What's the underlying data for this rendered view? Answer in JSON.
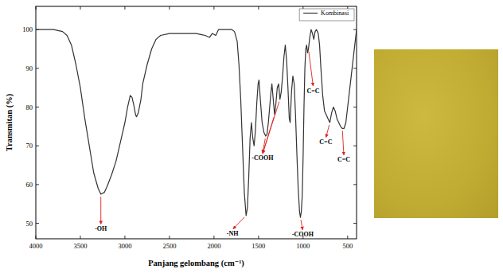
{
  "chart_data": {
    "type": "line",
    "xlabel": "Panjang gelombang (cm⁻¹)",
    "ylabel": "Transmitan (%)",
    "xlim": [
      4000,
      400
    ],
    "ylim": [
      46,
      106
    ],
    "xticks": [
      4000,
      3500,
      3000,
      2500,
      2000,
      1500,
      1000,
      500
    ],
    "yticks": [
      50,
      60,
      70,
      80,
      90,
      100
    ],
    "grid": false,
    "legend": "upper right",
    "x": [
      4000,
      3900,
      3800,
      3700,
      3650,
      3600,
      3550,
      3500,
      3450,
      3400,
      3350,
      3300,
      3270,
      3230,
      3200,
      3150,
      3100,
      3050,
      3000,
      2970,
      2940,
      2920,
      2900,
      2880,
      2870,
      2850,
      2820,
      2800,
      2750,
      2700,
      2650,
      2600,
      2500,
      2400,
      2300,
      2200,
      2100,
      2050,
      2020,
      1980,
      1950,
      1900,
      1800,
      1770,
      1740,
      1720,
      1700,
      1680,
      1660,
      1640,
      1625,
      1610,
      1595,
      1580,
      1565,
      1550,
      1535,
      1520,
      1505,
      1495,
      1480,
      1460,
      1440,
      1420,
      1405,
      1390,
      1375,
      1360,
      1350,
      1335,
      1320,
      1305,
      1290,
      1275,
      1260,
      1245,
      1230,
      1215,
      1200,
      1185,
      1170,
      1155,
      1145,
      1130,
      1115,
      1100,
      1085,
      1070,
      1055,
      1040,
      1030,
      1020,
      1010,
      1000,
      990,
      980,
      970,
      960,
      950,
      940,
      925,
      910,
      895,
      880,
      865,
      850,
      830,
      815,
      800,
      780,
      760,
      740,
      720,
      700,
      680,
      660,
      640,
      620,
      600,
      580,
      560,
      540,
      520,
      500,
      480,
      460,
      440,
      420,
      400
    ],
    "series": [
      {
        "name": "Kombinasi",
        "color": "#333333",
        "values": [
          100,
          100,
          100,
          99.5,
          98.5,
          96,
          91,
          85,
          77,
          70,
          63,
          59,
          57.5,
          58,
          59.5,
          62.5,
          66,
          71,
          76,
          80,
          83,
          82.5,
          80.5,
          78,
          77.5,
          78.5,
          82,
          86,
          91,
          95,
          97.5,
          98.5,
          99,
          99,
          99,
          99,
          98.5,
          98,
          99,
          98.5,
          100,
          100,
          100,
          99.5,
          97,
          91,
          82,
          70,
          58,
          52,
          54,
          62,
          72,
          76,
          72,
          70,
          74,
          81,
          86,
          87,
          82,
          76,
          73.5,
          72.5,
          73,
          76,
          80,
          84,
          86,
          82,
          78,
          81,
          85,
          86,
          82,
          84,
          88,
          93,
          96,
          92,
          85,
          77,
          76,
          84,
          88,
          86,
          78,
          68,
          59,
          53,
          51.5,
          53,
          57,
          67,
          80,
          90,
          95,
          96,
          94,
          95,
          98,
          100,
          99,
          97.5,
          99.5,
          100,
          99,
          96,
          90,
          83,
          79,
          78,
          77,
          76,
          78.5,
          80,
          79,
          77,
          76,
          75,
          74.5,
          74.5,
          76,
          80,
          84,
          88,
          92,
          96,
          100
        ]
      }
    ],
    "annotations": [
      {
        "text": "-OH",
        "x": [
          3270
        ],
        "y": [
          57.5
        ]
      },
      {
        "text": "-NH",
        "x": [
          1640
        ],
        "y": [
          52
        ]
      },
      {
        "text": "-COOH",
        "x": [
          1420,
          1320,
          1260
        ],
        "y": [
          72.5,
          78,
          82
        ]
      },
      {
        "text": "-COOH",
        "x": [
          1030
        ],
        "y": [
          51.5
        ]
      },
      {
        "text": "C=C",
        "x": [
          940
        ],
        "y": [
          95
        ]
      },
      {
        "text": "C=C",
        "x": [
          700
        ],
        "y": [
          76
        ]
      },
      {
        "text": "C=C",
        "x": [
          560
        ],
        "y": [
          74.5
        ]
      }
    ]
  }
}
